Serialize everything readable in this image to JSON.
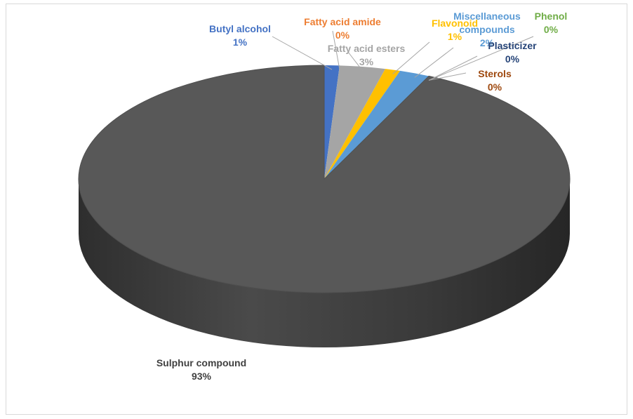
{
  "chart_data": {
    "type": "pie3d",
    "categories": [
      "Butyl alcohol",
      "Fatty acid amide",
      "Fatty acid esters",
      "Flavonoid",
      "Miscellaneous compounds",
      "Phenol",
      "Plasticizer",
      "Sterols",
      "Sulphur compound"
    ],
    "values": [
      1,
      0,
      3,
      1,
      2,
      0,
      0,
      0,
      93
    ],
    "value_labels": [
      "1%",
      "0%",
      "3%",
      "1%",
      "2%",
      "0%",
      "0%",
      "0%",
      "93%"
    ],
    "colors": [
      "#4472c4",
      "#ed7d31",
      "#a5a5a5",
      "#ffc000",
      "#5b9bd5",
      "#70ad47",
      "#264478",
      "#9e480e",
      "#585858"
    ]
  }
}
